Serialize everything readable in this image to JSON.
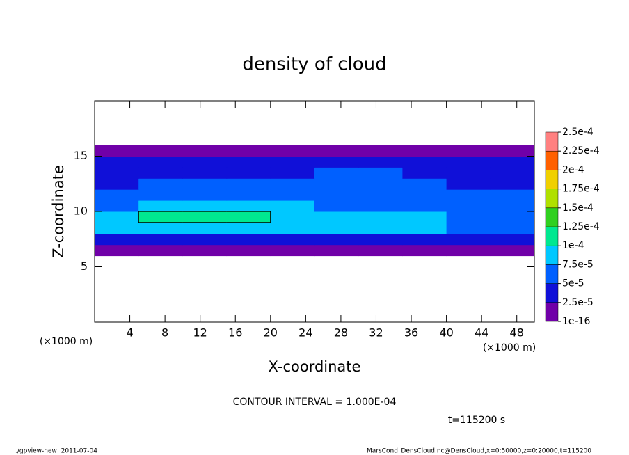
{
  "chart_data": {
    "type": "contour",
    "title": "density of cloud",
    "xlabel": "X-coordinate",
    "ylabel": "Z-coordinate",
    "x_unit": "(×1000 m)",
    "y_unit": "(×1000 m)",
    "xlim": [
      0,
      50
    ],
    "ylim": [
      0,
      20
    ],
    "xticks": [
      4,
      8,
      12,
      16,
      20,
      24,
      28,
      32,
      36,
      40,
      44,
      48
    ],
    "yticks": [
      5,
      10,
      15
    ],
    "field": {
      "x": [
        2.5,
        7.5,
        12.5,
        17.5,
        22.5,
        27.5,
        32.5,
        37.5,
        42.5,
        47.5
      ],
      "z": [
        6.5,
        7.5,
        8.5,
        9.5,
        10.5,
        11.5,
        12.5,
        13.5,
        14.5,
        15.5
      ],
      "values": [
        [
          1.5e-05,
          1.5e-05,
          1.5e-05,
          1.5e-05,
          1.5e-05,
          1.5e-05,
          1.5e-05,
          1.5e-05,
          1.5e-05,
          1.5e-05
        ],
        [
          4e-05,
          4e-05,
          4e-05,
          4e-05,
          4e-05,
          4e-05,
          3.5e-05,
          4e-05,
          3.5e-05,
          3e-05
        ],
        [
          9e-05,
          9e-05,
          9e-05,
          8.5e-05,
          8e-05,
          8e-05,
          8e-05,
          7.5e-05,
          7e-05,
          6.5e-05
        ],
        [
          8.5e-05,
          0.000105,
          0.000105,
          0.000105,
          9e-05,
          8e-05,
          8.5e-05,
          7.5e-05,
          7e-05,
          7e-05
        ],
        [
          7e-05,
          8e-05,
          8e-05,
          8e-05,
          7.5e-05,
          7e-05,
          6.5e-05,
          6.5e-05,
          6e-05,
          6e-05
        ],
        [
          5.5e-05,
          6e-05,
          6e-05,
          6.5e-05,
          6e-05,
          6e-05,
          6e-05,
          5.5e-05,
          5e-05,
          5e-05
        ],
        [
          4.5e-05,
          5e-05,
          5e-05,
          6e-05,
          5.5e-05,
          6e-05,
          6e-05,
          5.5e-05,
          4.5e-05,
          4e-05
        ],
        [
          3.5e-05,
          4e-05,
          4e-05,
          4.5e-05,
          4.5e-05,
          5.5e-05,
          5.5e-05,
          4.5e-05,
          4e-05,
          3.5e-05
        ],
        [
          3e-05,
          3e-05,
          3e-05,
          3e-05,
          3e-05,
          3e-05,
          3e-05,
          3e-05,
          3e-05,
          3e-05
        ],
        [
          1.5e-05,
          1.5e-05,
          1.5e-05,
          1.5e-05,
          1.5e-05,
          1.5e-05,
          1.5e-05,
          1.5e-05,
          1.5e-05,
          1.5e-05
        ]
      ]
    },
    "contour_levels": [
      0.0001
    ],
    "colorbar": {
      "levels": [
        {
          "value": 1e-16,
          "label": "1e-16"
        },
        {
          "value": 2.5e-05,
          "label": "2.5e-5"
        },
        {
          "value": 5e-05,
          "label": "5e-5"
        },
        {
          "value": 7.5e-05,
          "label": "7.5e-5"
        },
        {
          "value": 0.0001,
          "label": "1e-4"
        },
        {
          "value": 0.000125,
          "label": "1.25e-4"
        },
        {
          "value": 0.00015,
          "label": "1.5e-4"
        },
        {
          "value": 0.000175,
          "label": "1.75e-4"
        },
        {
          "value": 0.0002,
          "label": "2e-4"
        },
        {
          "value": 0.000225,
          "label": "2.25e-4"
        },
        {
          "value": 0.00025,
          "label": "2.5e-4"
        }
      ],
      "colors": [
        "#7000a8",
        "#1010d8",
        "#0060ff",
        "#00c8ff",
        "#00e890",
        "#30d020",
        "#b0e000",
        "#f0d000",
        "#ff6000",
        "#ff8080"
      ]
    },
    "contour_interval_text": "CONTOUR INTERVAL = 1.000E-04",
    "time_text": "t=115200 s",
    "footer_left": "./gpview-new  2011-07-04",
    "footer_right": "MarsCond_DensCloud.nc@DensCloud,x=0:50000,z=0:20000,t=115200"
  }
}
